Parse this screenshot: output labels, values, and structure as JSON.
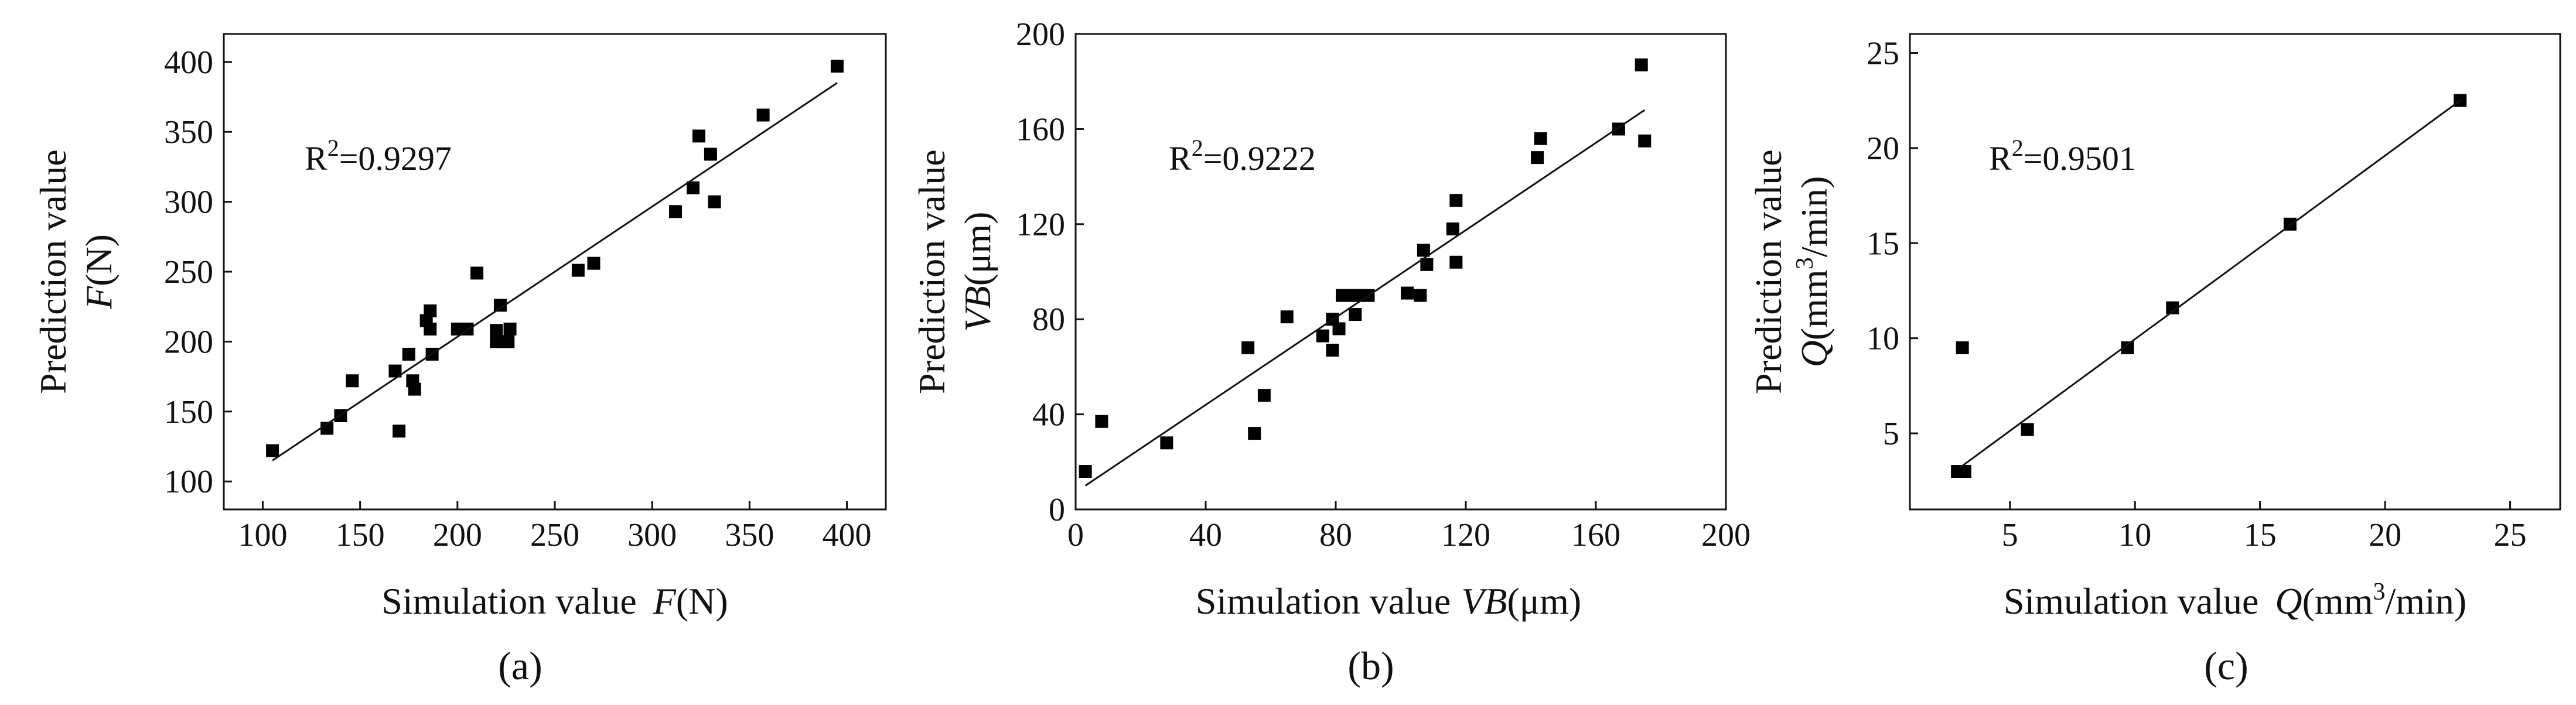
{
  "chart_data": [
    {
      "type": "scatter",
      "panel": "(a)",
      "xlabel_prefix": "Simulation value",
      "xlabel_var": "F",
      "xlabel_unit": "(N)",
      "ylabel_line1": "Prediction value",
      "ylabel_var": "F",
      "ylabel_unit": "(N)",
      "r2_prefix": "R",
      "r2_sup": "2",
      "r2_value": "=0.9297",
      "xlim": [
        80,
        420
      ],
      "ylim": [
        80,
        420
      ],
      "xticks": [
        100,
        150,
        200,
        250,
        300,
        350,
        400
      ],
      "yticks": [
        100,
        150,
        200,
        250,
        300,
        350,
        400
      ],
      "fit_line": [
        [
          105,
          115
        ],
        [
          395,
          385
        ]
      ],
      "points": [
        [
          105,
          122
        ],
        [
          133,
          138
        ],
        [
          140,
          147
        ],
        [
          146,
          172
        ],
        [
          168,
          179
        ],
        [
          170,
          136
        ],
        [
          175,
          191
        ],
        [
          177,
          172
        ],
        [
          178,
          166
        ],
        [
          184,
          215
        ],
        [
          186,
          222
        ],
        [
          186,
          209
        ],
        [
          187,
          191
        ],
        [
          200,
          209
        ],
        [
          205,
          209
        ],
        [
          210,
          249
        ],
        [
          220,
          208
        ],
        [
          220,
          200
        ],
        [
          222,
          226
        ],
        [
          226,
          200
        ],
        [
          227,
          209
        ],
        [
          262,
          251
        ],
        [
          270,
          256
        ],
        [
          312,
          293
        ],
        [
          321,
          310
        ],
        [
          324,
          347
        ],
        [
          330,
          334
        ],
        [
          332,
          300
        ],
        [
          357,
          362
        ],
        [
          395,
          397
        ]
      ]
    },
    {
      "type": "scatter",
      "panel": "(b)",
      "xlabel_prefix": "Simulation value",
      "xlabel_var": "VB",
      "xlabel_unit": "(μm)",
      "ylabel_line1": "Prediction value",
      "ylabel_var": "VB",
      "ylabel_unit": "(μm)",
      "r2_prefix": "R",
      "r2_sup": "2",
      "r2_value": "=0.9222",
      "xlim": [
        0,
        200
      ],
      "ylim": [
        0,
        200
      ],
      "xticks": [
        0,
        40,
        80,
        120,
        160,
        200
      ],
      "yticks": [
        0,
        40,
        80,
        120,
        160,
        200
      ],
      "fit_line": [
        [
          3,
          10
        ],
        [
          175,
          168
        ]
      ],
      "points": [
        [
          3,
          16
        ],
        [
          8,
          37
        ],
        [
          28,
          28
        ],
        [
          53,
          68
        ],
        [
          55,
          32
        ],
        [
          58,
          48
        ],
        [
          65,
          81
        ],
        [
          76,
          73
        ],
        [
          79,
          80
        ],
        [
          79,
          67
        ],
        [
          81,
          76
        ],
        [
          82,
          90
        ],
        [
          84,
          90
        ],
        [
          86,
          82
        ],
        [
          87,
          90
        ],
        [
          88,
          90
        ],
        [
          90,
          90
        ],
        [
          102,
          91
        ],
        [
          106,
          90
        ],
        [
          107,
          109
        ],
        [
          108,
          103
        ],
        [
          116,
          118
        ],
        [
          117,
          130
        ],
        [
          117,
          104
        ],
        [
          142,
          148
        ],
        [
          143,
          156
        ],
        [
          167,
          160
        ],
        [
          174,
          187
        ],
        [
          175,
          155
        ]
      ]
    },
    {
      "type": "scatter",
      "panel": "(c)",
      "xlabel_prefix": "Simulation value",
      "xlabel_var": "Q",
      "xlabel_unit_pre": "(mm",
      "xlabel_unit_sup": "3",
      "xlabel_unit_post": "/min)",
      "ylabel_line1": "Prediction value",
      "ylabel_var": "Q",
      "ylabel_unit_pre": "(mm",
      "ylabel_unit_sup": "3",
      "ylabel_unit_post": "/min)",
      "r2_prefix": "R",
      "r2_sup": "2",
      "r2_value": "=0.9501",
      "xlim": [
        1,
        27
      ],
      "ylim": [
        1,
        26
      ],
      "xticks": [
        5,
        10,
        15,
        20,
        25
      ],
      "yticks": [
        5,
        10,
        15,
        20,
        25
      ],
      "fit_line": [
        [
          3,
          3.2
        ],
        [
          23,
          22.5
        ]
      ],
      "points": [
        [
          2.9,
          3.0
        ],
        [
          3.2,
          3.0
        ],
        [
          3.1,
          9.5
        ],
        [
          5.7,
          5.2
        ],
        [
          9.7,
          9.5
        ],
        [
          11.5,
          11.6
        ],
        [
          16.2,
          16.0
        ],
        [
          23.0,
          22.5
        ]
      ]
    }
  ]
}
